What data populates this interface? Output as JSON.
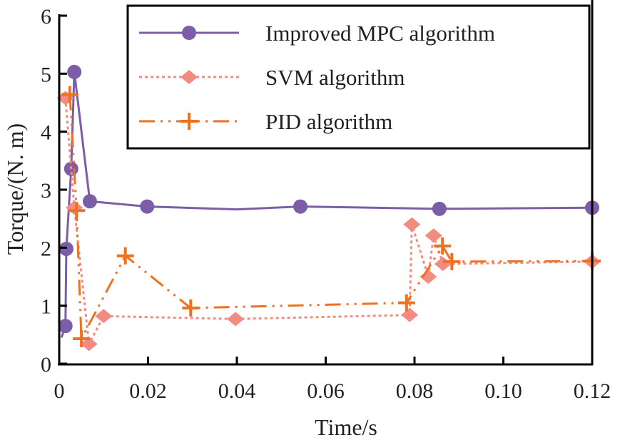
{
  "chart_data": {
    "type": "line",
    "title": "",
    "xlabel": "Time/s",
    "ylabel": "Torque/(N. m)",
    "xlim": [
      0,
      0.12
    ],
    "ylim": [
      0,
      6
    ],
    "xticks": [
      "0",
      "0.02",
      "0.04",
      "0.06",
      "0.08",
      "0.10",
      "0.12"
    ],
    "xtick_values": [
      0,
      0.02,
      0.04,
      0.06,
      0.08,
      0.1,
      0.12
    ],
    "yticks": [
      "0",
      "1",
      "2",
      "3",
      "4",
      "5",
      "6"
    ],
    "ytick_values": [
      0,
      1,
      2,
      3,
      4,
      5,
      6
    ],
    "grid": false,
    "legend_position": "top-right",
    "series": [
      {
        "name": "Improved MPC algorithm",
        "color": "#7b5ea7",
        "marker": "circle",
        "style": "solid",
        "x": [
          0.0005,
          0.0014,
          0.0016,
          0.0027,
          0.0034,
          0.0069,
          0.0198,
          0.04,
          0.0543,
          0.0856,
          0.12
        ],
        "y": [
          0.45,
          0.65,
          1.98,
          3.36,
          5.03,
          2.8,
          2.71,
          2.66,
          2.71,
          2.67,
          2.69
        ],
        "markers": [
          false,
          true,
          true,
          true,
          true,
          true,
          true,
          false,
          true,
          true,
          true
        ]
      },
      {
        "name": "SVM algorithm",
        "color": "#f28b82",
        "marker": "diamond",
        "style": "dotted",
        "x": [
          0.0014,
          0.0034,
          0.0067,
          0.01,
          0.0397,
          0.0789,
          0.0794,
          0.0831,
          0.0843,
          0.0864,
          0.12
        ],
        "y": [
          4.58,
          2.69,
          0.34,
          0.82,
          0.77,
          0.84,
          2.4,
          1.5,
          2.21,
          1.72,
          1.76
        ]
      },
      {
        "name": "PID algorithm",
        "color": "#f07022",
        "marker": "plus",
        "style": "dashdotdot",
        "x": [
          0.0024,
          0.0039,
          0.005,
          0.0149,
          0.0296,
          0.0782,
          0.0863,
          0.0884,
          0.12
        ],
        "y": [
          4.64,
          2.64,
          0.43,
          1.86,
          0.96,
          1.05,
          2.03,
          1.76,
          1.77
        ]
      }
    ]
  }
}
